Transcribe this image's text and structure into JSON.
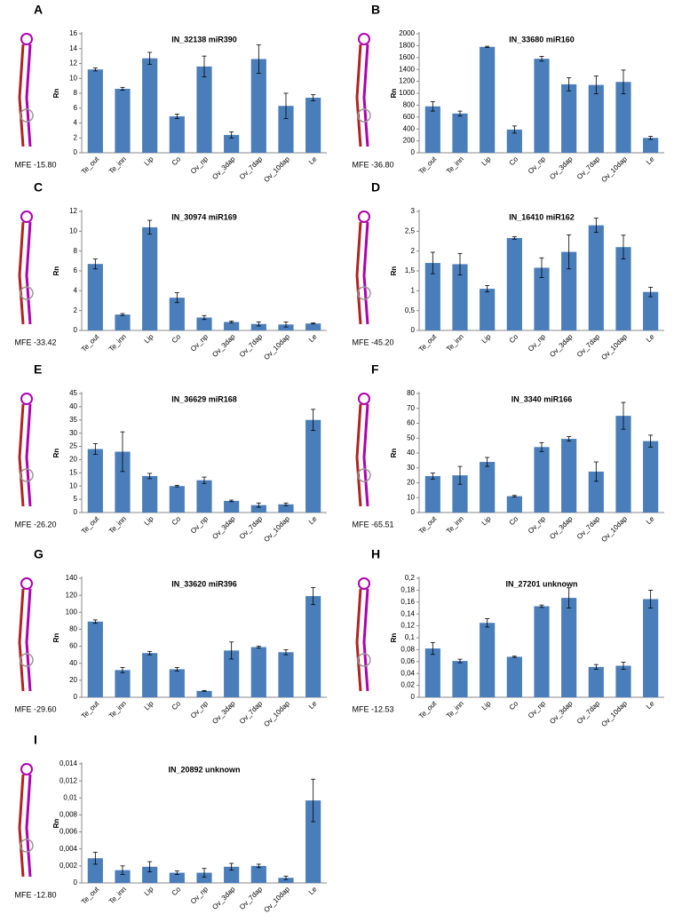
{
  "chart_data": [
    {
      "type": "bar",
      "panel": "A",
      "title": "IN_32138 miR390",
      "mfe_label": "MFE -15.80",
      "y_label": "Rn",
      "color": "#4a7ebb",
      "categories": [
        "Te_out",
        "Te_inn",
        "Lip",
        "Co",
        "Ov_np",
        "Ov_3dap",
        "Ov_7dap",
        "Ov_10dap",
        "Le"
      ],
      "values": [
        11.2,
        8.6,
        12.7,
        4.9,
        11.6,
        2.4,
        12.6,
        6.3,
        7.4
      ],
      "errors": [
        0.2,
        0.2,
        0.8,
        0.3,
        1.4,
        0.4,
        1.9,
        1.7,
        0.4
      ],
      "ylim": [
        0,
        16
      ],
      "yticks": [
        0,
        2,
        4,
        6,
        8,
        10,
        12,
        14,
        16
      ]
    },
    {
      "type": "bar",
      "panel": "B",
      "title": "IN_33680 miR160",
      "mfe_label": "MFE -36.80",
      "y_label": "Rn",
      "color": "#4a7ebb",
      "categories": [
        "Te_out",
        "Te_inn",
        "Lip",
        "Co",
        "Ov_np",
        "Ov_3dap",
        "Ov_7dap",
        "Ov_10dap",
        "Le"
      ],
      "values": [
        780,
        660,
        1780,
        390,
        1580,
        1150,
        1140,
        1190,
        250
      ],
      "errors": [
        80,
        40,
        10,
        60,
        40,
        110,
        150,
        200,
        25
      ],
      "ylim": [
        0,
        2000
      ],
      "yticks": [
        0,
        200,
        400,
        600,
        800,
        1000,
        1200,
        1400,
        1600,
        1800,
        2000
      ]
    },
    {
      "type": "bar",
      "panel": "C",
      "title": "IN_30974 miR169",
      "mfe_label": "MFE -33.42",
      "y_label": "Rn",
      "color": "#4a7ebb",
      "categories": [
        "Te_out",
        "Te_inn",
        "Lip",
        "Co",
        "Ov_np",
        "Ov_3dap",
        "Ov_7dap",
        "Ov_10dap",
        "Le"
      ],
      "values": [
        6.7,
        1.6,
        10.4,
        3.3,
        1.3,
        0.85,
        0.65,
        0.6,
        0.7
      ],
      "errors": [
        0.5,
        0.1,
        0.7,
        0.5,
        0.2,
        0.1,
        0.2,
        0.25,
        0.05
      ],
      "ylim": [
        0,
        12
      ],
      "yticks": [
        0,
        2,
        4,
        6,
        8,
        10,
        12
      ]
    },
    {
      "type": "bar",
      "panel": "D",
      "title": "IN_16410 miR162",
      "mfe_label": "MFE -45.20",
      "y_label": "Rn",
      "color": "#4a7ebb",
      "categories": [
        "Te_out",
        "Te_inn",
        "Lip",
        "Co",
        "Ov_np",
        "Ov_3dap",
        "Ov_7dap",
        "Ov_10dap",
        "Le"
      ],
      "values": [
        1.7,
        1.67,
        1.05,
        2.33,
        1.58,
        1.98,
        2.65,
        2.1,
        0.97
      ],
      "errors": [
        0.27,
        0.27,
        0.08,
        0.03,
        0.25,
        0.43,
        0.18,
        0.3,
        0.12
      ],
      "ylim": [
        0,
        3
      ],
      "yticks": [
        0,
        {
          "value": 0.5,
          "label": "0,5"
        },
        1,
        {
          "value": 1.5,
          "label": "1,5"
        },
        2,
        {
          "value": 2.5,
          "label": "2,5"
        },
        3
      ]
    },
    {
      "type": "bar",
      "panel": "E",
      "title": "IN_36629 miR168",
      "mfe_label": "MFE -26.20",
      "y_label": "Rn",
      "color": "#4a7ebb",
      "categories": [
        "Te_out",
        "Te_inn",
        "Lip",
        "Co",
        "Ov_np",
        "Ov_3dap",
        "Ov_7dap",
        "Ov_10dap",
        "Le"
      ],
      "values": [
        24,
        23,
        13.8,
        10,
        12.2,
        4.4,
        2.8,
        3.1,
        35
      ],
      "errors": [
        2,
        7.5,
        1,
        0.3,
        1.2,
        0.3,
        0.8,
        0.5,
        4
      ],
      "ylim": [
        0,
        45
      ],
      "yticks": [
        0,
        5,
        10,
        15,
        20,
        25,
        30,
        35,
        40,
        45
      ]
    },
    {
      "type": "bar",
      "panel": "F",
      "title": "IN_3340 miR166",
      "mfe_label": "MFE -65.51",
      "y_label": "Rn",
      "color": "#4a7ebb",
      "categories": [
        "Te_out",
        "Te_inn",
        "Lip",
        "Co",
        "Ov_np",
        "Ov_3dap",
        "Ov_7dap",
        "Ov_10dap",
        "Le"
      ],
      "values": [
        24.5,
        25,
        34,
        11,
        44,
        49.5,
        27.5,
        65,
        48
      ],
      "errors": [
        2,
        6,
        3,
        0.5,
        3,
        1.5,
        6.5,
        9,
        4
      ],
      "ylim": [
        0,
        80
      ],
      "yticks": [
        0,
        10,
        20,
        30,
        40,
        50,
        60,
        70,
        80
      ]
    },
    {
      "type": "bar",
      "panel": "G",
      "title": "IN_33620 miR396",
      "mfe_label": "MFE -29.60",
      "y_label": "Rn",
      "color": "#4a7ebb",
      "categories": [
        "Te_out",
        "Te_inn",
        "Lip",
        "Co",
        "Ov_np",
        "Ov_3dap",
        "Ov_7dap",
        "Ov_10dap",
        "Le"
      ],
      "values": [
        89,
        32,
        52,
        33,
        7.5,
        55,
        59,
        53,
        119
      ],
      "errors": [
        2,
        3,
        2,
        2,
        0.5,
        10,
        1,
        3,
        10
      ],
      "ylim": [
        0,
        140
      ],
      "yticks": [
        0,
        20,
        40,
        60,
        80,
        100,
        120,
        140
      ]
    },
    {
      "type": "bar",
      "panel": "H",
      "title": "IN_27201 unknown",
      "mfe_label": "MFE -12.53",
      "y_label": "Rn",
      "color": "#4a7ebb",
      "categories": [
        "Te_out",
        "Te_inn",
        "Lip",
        "Co",
        "Ov_np",
        "Ov_3dap",
        "Ov_7dap",
        "Ov_10dap",
        "Le"
      ],
      "values": [
        0.082,
        0.061,
        0.125,
        0.068,
        0.153,
        0.167,
        0.051,
        0.053,
        0.165
      ],
      "errors": [
        0.01,
        0.003,
        0.007,
        0.001,
        0.002,
        0.017,
        0.004,
        0.006,
        0.015
      ],
      "ylim": [
        0,
        0.2
      ],
      "yticks": [
        0,
        {
          "value": 0.02,
          "label": "0,02"
        },
        {
          "value": 0.04,
          "label": "0,04"
        },
        {
          "value": 0.06,
          "label": "0,06"
        },
        {
          "value": 0.08,
          "label": "0,08"
        },
        {
          "value": 0.1,
          "label": "0,1"
        },
        {
          "value": 0.12,
          "label": "0,12"
        },
        {
          "value": 0.14,
          "label": "0,14"
        },
        {
          "value": 0.16,
          "label": "0,16"
        },
        {
          "value": 0.18,
          "label": "0,18"
        },
        {
          "value": 0.2,
          "label": "0,2"
        }
      ]
    },
    {
      "type": "bar",
      "panel": "I",
      "title": "IN_20892 unknown",
      "mfe_label": "MFE -12.80",
      "y_label": "Rn",
      "color": "#4a7ebb",
      "categories": [
        "Te_out",
        "Te_inn",
        "Lip",
        "Co",
        "Ov_np",
        "Ov_3dap",
        "Ov_7dap",
        "Ov_10dap",
        "Le"
      ],
      "values": [
        0.0029,
        0.0015,
        0.0019,
        0.0012,
        0.0012,
        0.0019,
        0.002,
        0.0006,
        0.0097
      ],
      "errors": [
        0.0007,
        0.0005,
        0.0006,
        0.0002,
        0.0005,
        0.0004,
        0.0002,
        0.0002,
        0.0025
      ],
      "ylim": [
        0,
        0.014
      ],
      "yticks": [
        0,
        {
          "value": 0.002,
          "label": "0,002"
        },
        {
          "value": 0.004,
          "label": "0,004"
        },
        {
          "value": 0.006,
          "label": "0,006"
        },
        {
          "value": 0.008,
          "label": "0,008"
        },
        {
          "value": 0.01,
          "label": "0,01"
        },
        {
          "value": 0.012,
          "label": "0,012"
        },
        {
          "value": 0.014,
          "label": "0,014"
        }
      ]
    }
  ]
}
